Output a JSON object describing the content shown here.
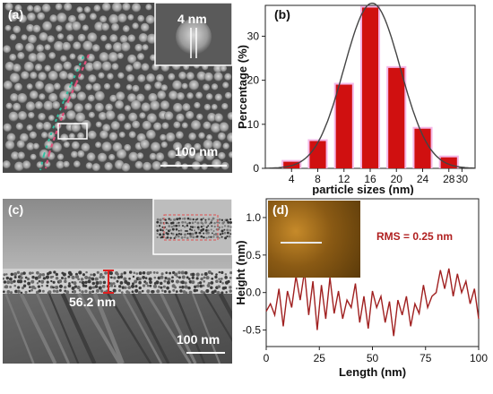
{
  "panels": {
    "a": {
      "label": "(a)",
      "scale_text": "100 nm",
      "inset_text": "4 nm"
    },
    "b": {
      "label": "(b)"
    },
    "c": {
      "label": "(c)",
      "thickness_text": "56.2 nm",
      "scale_text": "100 nm"
    },
    "d": {
      "label": "(d)",
      "rms_text": "RMS = 0.25 nm"
    }
  },
  "colors": {
    "bar_fill": "#d01010",
    "bar_highlight": "#f4b8e8",
    "fit_curve": "#444444",
    "profile_line": "#a02020"
  },
  "chart_data": [
    {
      "type": "bar",
      "panel": "b",
      "xlabel": "particle sizes (nm)",
      "ylabel": "Percentage (%)",
      "x_ticks": [
        4,
        8,
        12,
        16,
        20,
        24,
        28,
        30
      ],
      "y_ticks": [
        0,
        10,
        20,
        30
      ],
      "xlim": [
        0,
        32
      ],
      "ylim": [
        0,
        37
      ],
      "categories": [
        4,
        8,
        12,
        16,
        20,
        24,
        28
      ],
      "values": [
        1.5,
        6.2,
        19,
        36.5,
        22.8,
        9,
        2.5
      ],
      "fit": {
        "type": "gaussian",
        "mean": 16.3,
        "sigma": 4.3,
        "peak": 37.5
      }
    },
    {
      "type": "line",
      "panel": "d",
      "xlabel": "Length (nm)",
      "ylabel": "Height (nm)",
      "x_ticks": [
        0,
        25,
        50,
        75,
        100
      ],
      "y_ticks": [
        -0.5,
        0.0,
        0.5,
        1.0
      ],
      "xlim": [
        0,
        100
      ],
      "ylim": [
        -0.72,
        1.25
      ],
      "x": [
        0,
        2,
        4,
        6,
        8,
        10,
        12,
        14,
        16,
        18,
        20,
        22,
        24,
        26,
        28,
        30,
        32,
        34,
        36,
        38,
        40,
        42,
        44,
        46,
        48,
        50,
        52,
        54,
        56,
        58,
        60,
        62,
        64,
        66,
        68,
        70,
        72,
        74,
        76,
        78,
        80,
        82,
        84,
        86,
        88,
        90,
        92,
        94,
        96,
        98,
        100
      ],
      "y": [
        -0.25,
        -0.15,
        -0.3,
        0.05,
        -0.45,
        0.02,
        -0.2,
        0.22,
        -0.1,
        0.28,
        -0.3,
        0.15,
        -0.5,
        0.1,
        -0.35,
        0.2,
        -0.28,
        0.02,
        -0.35,
        -0.1,
        -0.2,
        0.12,
        -0.4,
        -0.05,
        -0.48,
        0.02,
        -0.2,
        -0.05,
        -0.4,
        -0.12,
        -0.58,
        -0.1,
        -0.3,
        -0.05,
        -0.45,
        -0.15,
        -0.28,
        0.1,
        -0.2,
        -0.05,
        0.0,
        0.3,
        0.05,
        0.32,
        -0.05,
        0.25,
        0.0,
        0.15,
        -0.15,
        0.05,
        -0.35
      ]
    }
  ]
}
